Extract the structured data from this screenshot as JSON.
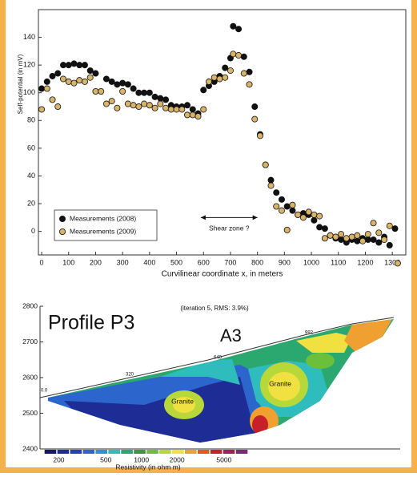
{
  "chart_data": [
    {
      "type": "scatter",
      "xlabel": "Curvilinear coordinate x, in meters",
      "ylabel": "Self-potential (in mV)",
      "xlim": [
        -12,
        1350
      ],
      "ylim": [
        -17,
        160
      ],
      "xticks": [
        0,
        100,
        200,
        300,
        400,
        500,
        600,
        700,
        800,
        900,
        1000,
        1100,
        1200,
        1300
      ],
      "yticks": [
        0,
        20,
        40,
        60,
        80,
        100,
        120,
        140
      ],
      "legend": "lower left",
      "annotation": "Shear zone ?",
      "annotation_span": [
        590,
        800
      ],
      "annotation_y": 10,
      "series": [
        {
          "name": "Measurements (2008)",
          "color": "#111111",
          "x": [
            0,
            20,
            40,
            60,
            80,
            100,
            120,
            140,
            160,
            180,
            200,
            240,
            260,
            280,
            300,
            320,
            340,
            360,
            380,
            400,
            420,
            440,
            460,
            480,
            500,
            520,
            540,
            560,
            580,
            600,
            620,
            640,
            660,
            680,
            700,
            710,
            730,
            750,
            770,
            790,
            810,
            830,
            850,
            870,
            890,
            910,
            930,
            950,
            970,
            990,
            1010,
            1030,
            1050,
            1070,
            1090,
            1110,
            1130,
            1150,
            1170,
            1190,
            1210,
            1230,
            1250,
            1270,
            1290,
            1310
          ],
          "values": [
            103,
            108,
            112,
            114,
            120,
            120,
            121,
            120,
            120,
            116,
            114,
            110,
            108,
            106,
            107,
            106,
            103,
            100,
            100,
            100,
            97,
            96,
            95,
            91,
            90,
            90,
            91,
            88,
            85,
            102,
            105,
            108,
            112,
            118,
            125,
            148,
            146,
            126,
            115,
            90,
            70,
            48,
            37,
            28,
            23,
            18,
            15,
            12,
            13,
            12,
            8,
            3,
            2,
            -3,
            -5,
            -6,
            -8,
            -6,
            -7,
            -5,
            -6,
            -6,
            -8,
            -4,
            -10,
            2
          ]
        },
        {
          "name": "Measurements (2009)",
          "color": "#d8b46a",
          "x": [
            0,
            20,
            40,
            60,
            80,
            100,
            120,
            140,
            160,
            180,
            200,
            220,
            240,
            260,
            280,
            300,
            320,
            340,
            360,
            380,
            400,
            420,
            440,
            460,
            480,
            500,
            520,
            540,
            560,
            580,
            600,
            620,
            640,
            660,
            680,
            700,
            710,
            730,
            750,
            770,
            790,
            810,
            830,
            850,
            870,
            890,
            910,
            930,
            950,
            970,
            990,
            1010,
            1030,
            1050,
            1070,
            1090,
            1110,
            1130,
            1150,
            1170,
            1190,
            1210,
            1230,
            1250,
            1270,
            1290,
            1320
          ],
          "values": [
            88,
            103,
            95,
            90,
            110,
            108,
            107,
            109,
            108,
            111,
            101,
            101,
            92,
            94,
            89,
            101,
            92,
            91,
            90,
            92,
            91,
            89,
            92,
            89,
            88,
            88,
            88,
            84,
            84,
            83,
            88,
            108,
            111,
            110,
            111,
            116,
            128,
            127,
            114,
            106,
            81,
            69,
            48,
            33,
            18,
            15,
            1,
            19,
            12,
            10,
            14,
            12,
            11,
            -5,
            -3,
            -4,
            -2,
            -5,
            -4,
            -3,
            -7,
            -2,
            6,
            -1,
            -6,
            4,
            -23
          ]
        }
      ]
    },
    {
      "type": "section",
      "title": "Profile P3",
      "label": "A3",
      "subtitle": "(iteration 5, RMS: 3.9%)",
      "ylim": [
        2400,
        2800
      ],
      "yticks": [
        2400,
        2500,
        2600,
        2700,
        2800
      ],
      "annotations": [
        "Granite",
        "Granite"
      ],
      "topo_labels": [
        "0.0",
        "320",
        "640",
        "992"
      ],
      "colorbar_label": "Resistivity (in ohm m)",
      "clim": [
        150,
        8000
      ],
      "clog": true,
      "cticks": [
        200,
        500,
        1000,
        2000,
        5000
      ],
      "colors": [
        "#16166a",
        "#1e2c96",
        "#2342b4",
        "#2c66cc",
        "#2f92d6",
        "#2ebcbc",
        "#2aa870",
        "#3a9a3a",
        "#6cbf3a",
        "#b8d83a",
        "#f0e040",
        "#f0a030",
        "#e05a20",
        "#c8202a",
        "#a0205a",
        "#7a2a7a"
      ]
    }
  ]
}
